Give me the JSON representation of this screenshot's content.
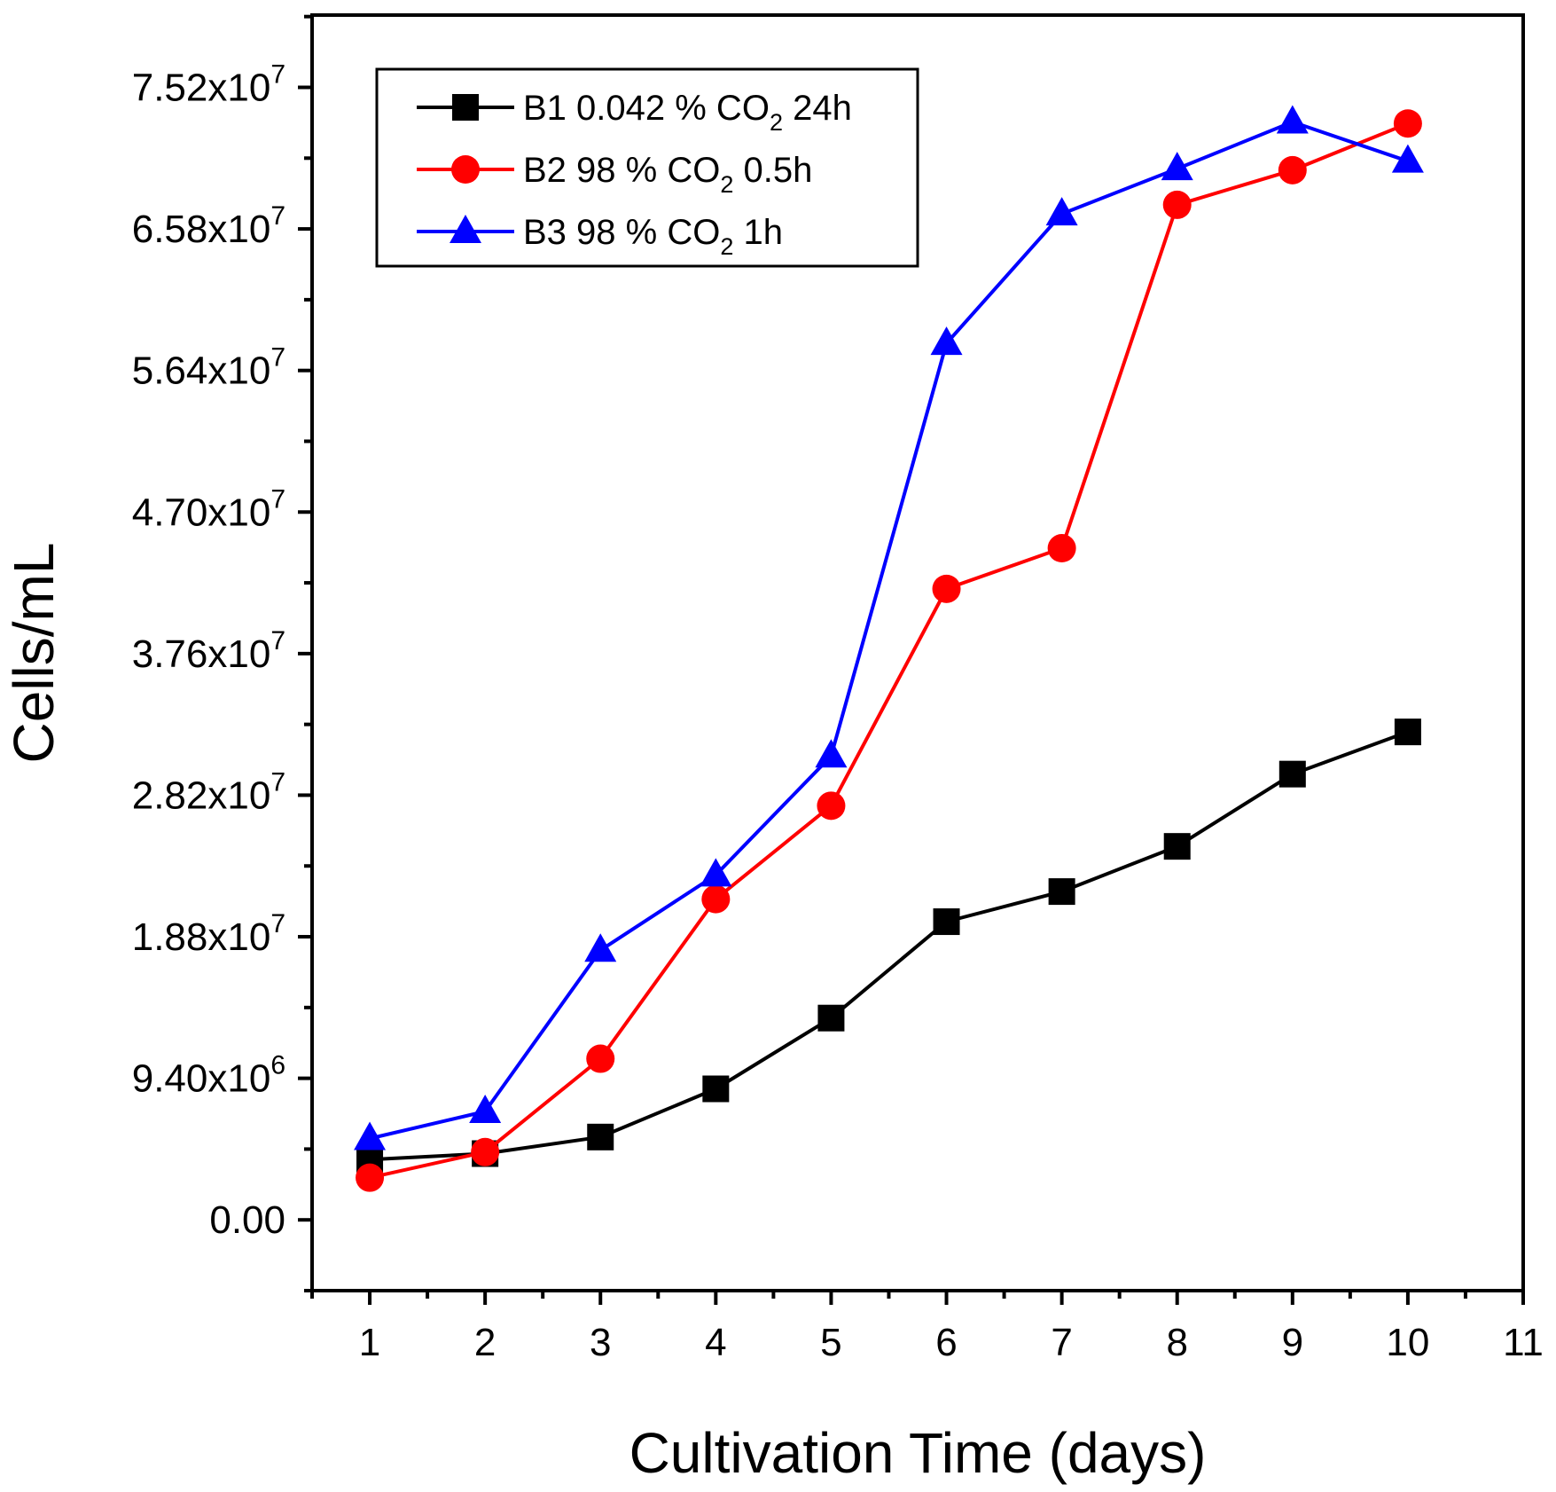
{
  "chart_data": {
    "type": "line",
    "title": "",
    "xlabel": "Cultivation Time (days)",
    "ylabel": "Cells/mL",
    "xlim": [
      0.5,
      11
    ],
    "ylim": [
      -4700000,
      80000000
    ],
    "x_ticks": [
      1,
      2,
      3,
      4,
      5,
      6,
      7,
      8,
      9,
      10,
      11
    ],
    "x_tick_labels": [
      "1",
      "2",
      "3",
      "4",
      "5",
      "6",
      "7",
      "8",
      "9",
      "10",
      "11"
    ],
    "y_ticks": [
      0,
      9400000,
      18800000,
      28200000,
      37600000,
      47000000,
      56400000,
      65800000,
      75200000
    ],
    "y_tick_labels": [
      {
        "mantissa": "0.00",
        "exp": ""
      },
      {
        "mantissa": "9.40x10",
        "exp": "6"
      },
      {
        "mantissa": "1.88x10",
        "exp": "7"
      },
      {
        "mantissa": "2.82x10",
        "exp": "7"
      },
      {
        "mantissa": "3.76x10",
        "exp": "7"
      },
      {
        "mantissa": "4.70x10",
        "exp": "7"
      },
      {
        "mantissa": "5.64x10",
        "exp": "7"
      },
      {
        "mantissa": "6.58x10",
        "exp": "7"
      },
      {
        "mantissa": "7.52x10",
        "exp": "7"
      }
    ],
    "x": [
      1,
      2,
      3,
      4,
      5,
      6,
      7,
      8,
      9,
      10
    ],
    "legend_position": "top-left",
    "series": [
      {
        "name": "B1 0.042 % CO2 24h",
        "label_parts": [
          "B1 0.042 % CO",
          "2",
          " 24h"
        ],
        "color": "#000000",
        "marker": "square",
        "values": [
          4000000,
          4400000,
          5500000,
          8700000,
          13400000,
          19800000,
          21800000,
          24800000,
          29600000,
          32400000
        ]
      },
      {
        "name": "B2 98 % CO2 0.5h",
        "label_parts": [
          "B2 98 % CO",
          "2",
          " 0.5h"
        ],
        "color": "#ff0000",
        "marker": "circle",
        "values": [
          2800000,
          4500000,
          10700000,
          21300000,
          27500000,
          41900000,
          44600000,
          67400000,
          69700000,
          72800000
        ]
      },
      {
        "name": "B3 98 % CO2 1h",
        "label_parts": [
          "B3 98 % CO",
          "2",
          " 1h"
        ],
        "color": "#0000ff",
        "marker": "triangle",
        "values": [
          5400000,
          7200000,
          17900000,
          22900000,
          30800000,
          58200000,
          66800000,
          69800000,
          72900000,
          70300000
        ]
      }
    ]
  }
}
